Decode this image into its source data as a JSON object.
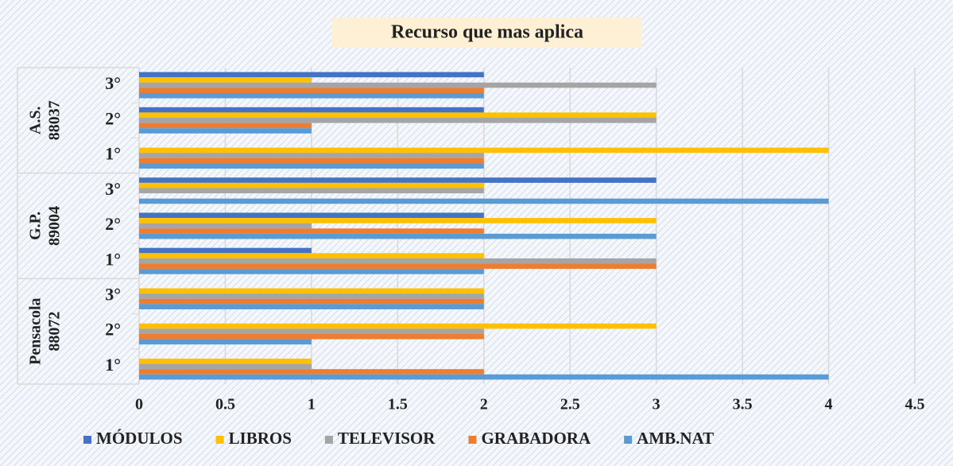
{
  "chart_data": {
    "type": "bar",
    "orientation": "horizontal",
    "title": "Recurso que mas aplica",
    "categories": [
      "1°",
      "2°",
      "3°",
      "1°",
      "2°",
      "3°",
      "1°",
      "2°",
      "3°"
    ],
    "groups": [
      {
        "label": [
          "Pensacola",
          "88072"
        ],
        "categories": [
          0,
          1,
          2
        ]
      },
      {
        "label": [
          "G.P.",
          "89004"
        ],
        "categories": [
          3,
          4,
          5
        ]
      },
      {
        "label": [
          "A.S.",
          "88037"
        ],
        "categories": [
          6,
          7,
          8
        ]
      }
    ],
    "series": [
      {
        "name": "MÓDULOS",
        "color": "#4472c4",
        "values": [
          0,
          0,
          0,
          1,
          2,
          3,
          0,
          2,
          2
        ]
      },
      {
        "name": "LIBROS",
        "color": "#ffc000",
        "values": [
          1,
          3,
          2,
          2,
          3,
          2,
          4,
          3,
          1
        ]
      },
      {
        "name": "TELEVISOR",
        "color": "#a5a5a5",
        "values": [
          1,
          2,
          2,
          3,
          1,
          2,
          2,
          3,
          3
        ]
      },
      {
        "name": "GRABADORA",
        "color": "#ed7d31",
        "values": [
          2,
          2,
          2,
          3,
          2,
          0,
          2,
          1,
          2
        ]
      },
      {
        "name": "AMB.NAT",
        "color": "#5b9bd5",
        "values": [
          4,
          1,
          2,
          2,
          3,
          4,
          2,
          1,
          2
        ]
      }
    ],
    "xlim": [
      0,
      4.5
    ],
    "xticks": [
      0,
      0.5,
      1,
      1.5,
      2,
      2.5,
      3,
      3.5,
      4,
      4.5
    ],
    "grid": true,
    "legend": "bottom"
  }
}
